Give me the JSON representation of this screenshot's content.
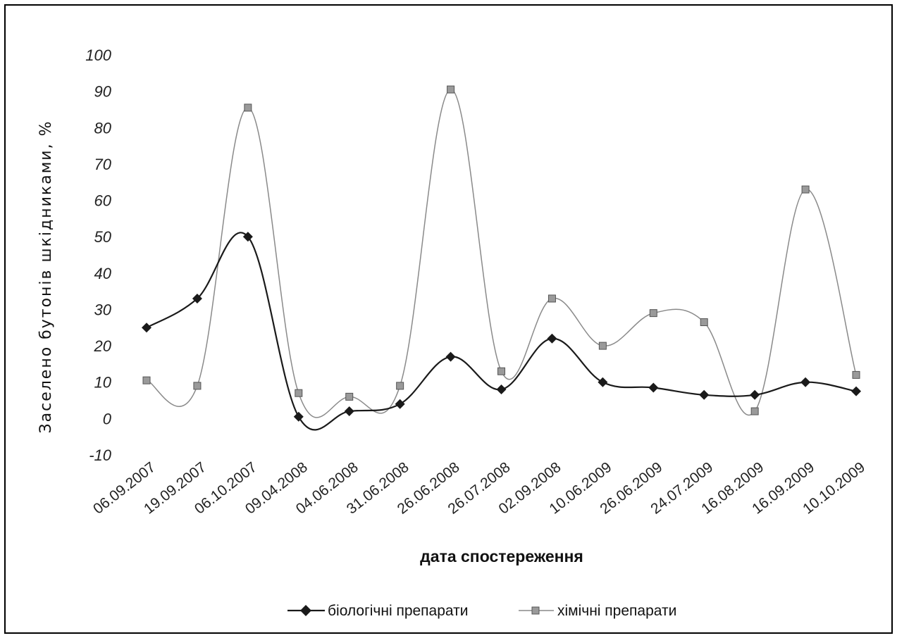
{
  "chart_data": {
    "type": "line",
    "title": "",
    "xlabel": "дата спостереження",
    "ylabel": "Заселено бутонів шкідниками, %",
    "ylim": [
      -10,
      100
    ],
    "yticks": [
      -10,
      0,
      10,
      20,
      30,
      40,
      50,
      60,
      70,
      80,
      90,
      100
    ],
    "grid": false,
    "legend_position": "bottom",
    "categories": [
      "06.09.2007",
      "19.09.2007",
      "06.10.2007",
      "09.04.2008",
      "04.06.2008",
      "31.06.2008",
      "26.06.2008",
      "26.07.2008",
      "02.09.2008",
      "10.06.2009",
      "26.06.2009",
      "24.07.2009",
      "16.08.2009",
      "16.09.2009",
      "10.10.2009"
    ],
    "series": [
      {
        "name": "біологічні препарати",
        "marker": "diamond",
        "color": "#1a1a1a",
        "values": [
          25,
          33,
          50,
          0.5,
          2,
          4,
          17,
          8,
          22,
          10,
          8.5,
          6.5,
          6.5,
          10,
          7.5
        ]
      },
      {
        "name": "хімічні препарати",
        "marker": "square",
        "color": "#8a8a8a",
        "values": [
          10.5,
          9,
          85.5,
          7,
          6,
          9,
          90.5,
          13,
          33,
          20,
          29,
          26.5,
          2,
          63,
          12
        ]
      }
    ]
  }
}
